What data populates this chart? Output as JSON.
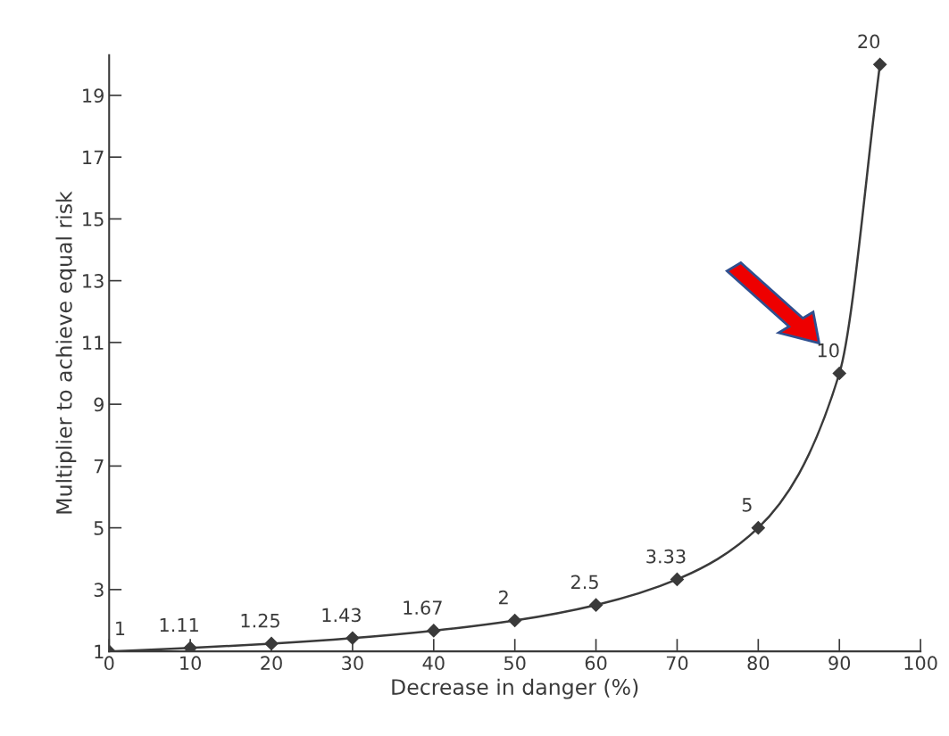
{
  "chart_data": {
    "type": "line",
    "xlabel": "Decrease in danger (%)",
    "ylabel": "Multiplier to achieve equal risk",
    "x": [
      0,
      10,
      20,
      30,
      40,
      50,
      60,
      70,
      80,
      90,
      95
    ],
    "series": [
      {
        "color": "#3a3a3a",
        "values": [
          1,
          1.11,
          1.25,
          1.43,
          1.67,
          2,
          2.5,
          3.33,
          5,
          10,
          20
        ]
      }
    ],
    "data_labels": true,
    "marker": "diamond",
    "line_style": "solid",
    "grid": false,
    "legend": false,
    "xlim": [
      0,
      100
    ],
    "xticks": [
      0,
      10,
      20,
      30,
      40,
      50,
      60,
      70,
      80,
      90,
      100
    ],
    "ylim": [
      1,
      20.3
    ],
    "yticks": [
      1,
      3,
      5,
      7,
      9,
      11,
      13,
      15,
      17,
      19
    ]
  }
}
